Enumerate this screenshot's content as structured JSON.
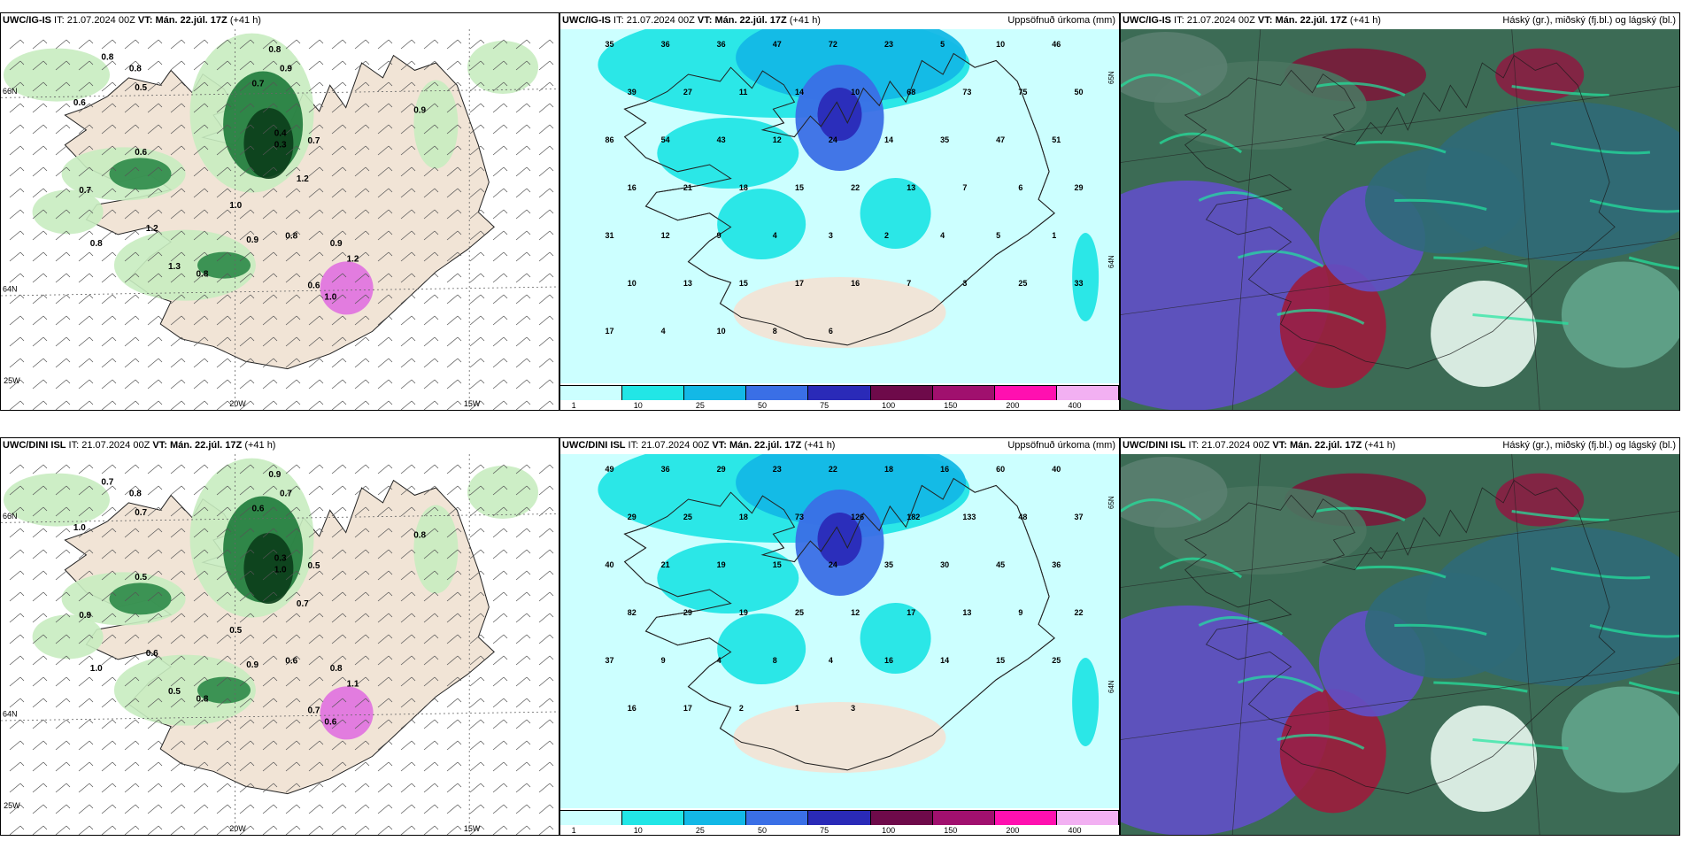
{
  "panels": [
    {
      "model": "UWC/IG-IS",
      "it_label": "IT:",
      "it_value": "21.07.2024 00Z",
      "vt_label": "VT:",
      "vt_value": "Mán. 22.júl. 17Z",
      "lead": "(+41 h)",
      "right_title": "",
      "type": "wind-precip",
      "lon_labels": [
        "20W",
        "15W",
        "25W"
      ],
      "lat_labels": [
        "66N",
        "64N"
      ],
      "values": [
        "0.8",
        "0.8",
        "0.8",
        "0.5",
        "0.6",
        "0.7",
        "0.9",
        "0.6",
        "0.7",
        "1.2",
        "0.8",
        "1.3",
        "0.8",
        "1.0",
        "0.9",
        "0.4",
        "0.3",
        "1.2",
        "0.7",
        "0.8",
        "0.9",
        "1.2",
        "0.6",
        "1.0",
        "0.9"
      ]
    },
    {
      "model": "UWC/IG-IS",
      "it_label": "IT:",
      "it_value": "21.07.2024 00Z",
      "vt_label": "VT:",
      "vt_value": "Mán. 22.júl. 17Z",
      "lead": "(+41 h)",
      "right_title": "Uppsöfnuð úrkoma (mm)",
      "type": "accum",
      "lat_labels": [
        "65N",
        "64N"
      ],
      "values": [
        "35",
        "36",
        "36",
        "47",
        "72",
        "23",
        "5",
        "10",
        "46",
        "39",
        "27",
        "11",
        "14",
        "10",
        "68",
        "73",
        "75",
        "50",
        "86",
        "54",
        "43",
        "12",
        "24",
        "14",
        "35",
        "47",
        "51",
        "16",
        "21",
        "18",
        "15",
        "22",
        "13",
        "7",
        "6",
        "29",
        "31",
        "12",
        "9",
        "4",
        "3",
        "2",
        "4",
        "5",
        "1",
        "10",
        "13",
        "15",
        "17",
        "16",
        "7",
        "3",
        "25",
        "33",
        "17",
        "4",
        "10",
        "8",
        "6"
      ]
    },
    {
      "model": "UWC/IG-IS",
      "it_label": "IT:",
      "it_value": "21.07.2024 00Z",
      "vt_label": "VT:",
      "vt_value": "Mán. 22.júl. 17Z",
      "lead": "(+41 h)",
      "right_title": "Háský (gr.), miðský (fj.bl.) og lágský (bl.)",
      "type": "clouds"
    },
    {
      "model": "UWC/DINI ISL",
      "it_label": "IT:",
      "it_value": "21.07.2024 00Z",
      "vt_label": "VT:",
      "vt_value": "Mán. 22.júl. 17Z",
      "lead": "(+41 h)",
      "right_title": "",
      "type": "wind-precip",
      "lon_labels": [
        "20W",
        "15W",
        "25W"
      ],
      "lat_labels": [
        "66N",
        "64N"
      ],
      "values": [
        "0.7",
        "0.8",
        "0.9",
        "0.7",
        "1.0",
        "0.6",
        "0.7",
        "0.5",
        "0.9",
        "0.6",
        "1.0",
        "0.5",
        "0.8",
        "0.5",
        "0.9",
        "0.3",
        "1.0",
        "0.7",
        "0.5",
        "0.6",
        "0.8",
        "1.1",
        "0.7",
        "0.6",
        "0.8"
      ]
    },
    {
      "model": "UWC/DINI ISL",
      "it_label": "IT:",
      "it_value": "21.07.2024 00Z",
      "vt_label": "VT:",
      "vt_value": "Mán. 22.júl. 17Z",
      "lead": "(+41 h)",
      "right_title": "Uppsöfnuð úrkoma (mm)",
      "type": "accum",
      "lat_labels": [
        "65N",
        "64N"
      ],
      "values": [
        "49",
        "36",
        "29",
        "23",
        "22",
        "18",
        "16",
        "60",
        "40",
        "29",
        "25",
        "18",
        "73",
        "126",
        "182",
        "133",
        "48",
        "37",
        "40",
        "21",
        "19",
        "15",
        "24",
        "35",
        "30",
        "45",
        "36",
        "82",
        "29",
        "19",
        "25",
        "12",
        "17",
        "13",
        "9",
        "22",
        "37",
        "9",
        "4",
        "8",
        "4",
        "16",
        "14",
        "15",
        "25",
        "16",
        "17",
        "2",
        "1",
        "3"
      ]
    },
    {
      "model": "UWC/DINI ISL",
      "it_label": "IT:",
      "it_value": "21.07.2024 00Z",
      "vt_label": "VT:",
      "vt_value": "Mán. 22.júl. 17Z",
      "lead": "(+41 h)",
      "right_title": "Háský (gr.), miðský (fj.bl.) og lágský (bl.)",
      "type": "clouds"
    }
  ],
  "colorbar": {
    "colors": [
      "#ccffff",
      "#22e6e6",
      "#13b8e6",
      "#3a6fe6",
      "#2a2ab8",
      "#6e0a4a",
      "#a0106e",
      "#ff10b0",
      "#f2b0f2"
    ],
    "labels": [
      "1",
      "10",
      "25",
      "50",
      "75",
      "100",
      "150",
      "200",
      "400"
    ]
  }
}
